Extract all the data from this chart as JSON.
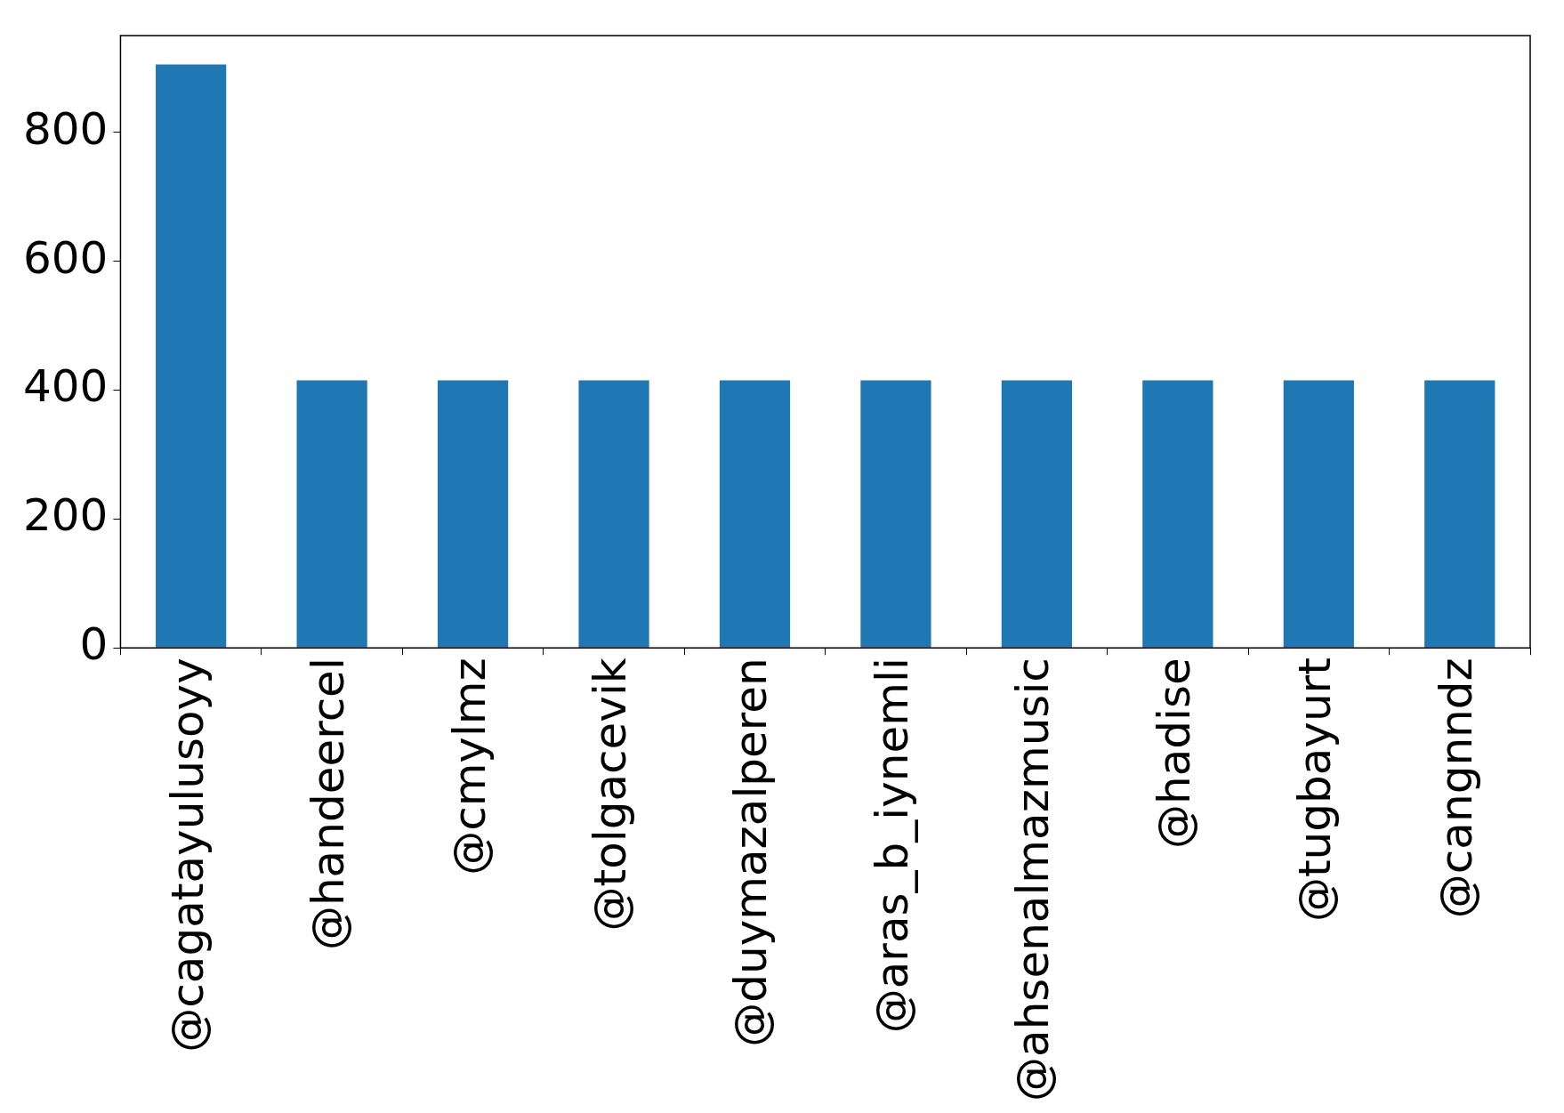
{
  "chart_data": {
    "type": "bar",
    "categories": [
      "@cagatayulusoyy",
      "@handeercel",
      "@cmylmz",
      "@tolgacevik",
      "@duymazalperen",
      "@aras_b_iynemli",
      "@ahsenalmazmusic",
      "@hadise",
      "@tugbayurt",
      "@cangnndz"
    ],
    "values": [
      905,
      415,
      415,
      415,
      415,
      415,
      415,
      415,
      415,
      415
    ],
    "color": "#1f77b4",
    "ylim": [
      0,
      950
    ],
    "yticks": [
      0,
      200,
      400,
      600,
      800
    ],
    "grid": false,
    "legend": false
  }
}
